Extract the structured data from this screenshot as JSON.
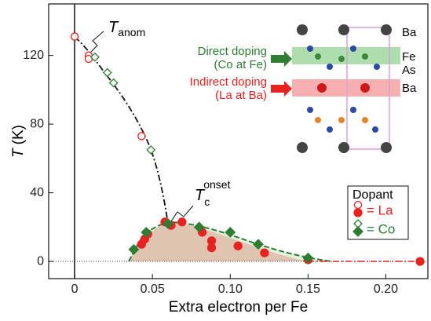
{
  "chart_data": {
    "type": "scatter",
    "x_label": "Extra electron per Fe",
    "y_label": {
      "symbol": "T",
      "unit": "(K)"
    },
    "xlim": [
      -0.0167,
      0.227
    ],
    "ylim": [
      -10,
      150
    ],
    "xticks": [
      0,
      0.05,
      {
        "value": 0.1,
        "label": "0.10"
      },
      0.15,
      {
        "value": 0.2,
        "label": "0.20"
      }
    ],
    "yticks": [
      0,
      40,
      80,
      120
    ],
    "annotations": {
      "anomaly": {
        "symbol": "T",
        "subscript": "anom"
      },
      "onset": {
        "symbol": "T",
        "subscript": "c",
        "superscript": "onset"
      }
    },
    "legend": {
      "title": "Dopant",
      "position": "lower right"
    },
    "dopants": [
      {
        "name": "= La",
        "color": "#e8231f",
        "marker": "circle",
        "anom_x": [
          0,
          0.009,
          0.009,
          0.043
        ],
        "anom": [
          131,
          120,
          118,
          73
        ],
        "tc_x": [
          0.043,
          0.045,
          0.047,
          0.058,
          0.062,
          0.069,
          0.082,
          0.088,
          0.088,
          0.105,
          0.122,
          0.15,
          0.222
        ],
        "tc": [
          10,
          13,
          16,
          23,
          21,
          23,
          17,
          12,
          8,
          9,
          5,
          1,
          0
        ]
      },
      {
        "name": "= Co",
        "color": "#2e7d32",
        "marker": "diamond",
        "anom_x": [
          0.013,
          0.021,
          0.025,
          0.049
        ],
        "anom": [
          119,
          110,
          104,
          65
        ],
        "tc_x": [
          0.038,
          0.046,
          0.06,
          0.08,
          0.1,
          0.118,
          0.15
        ],
        "tc": [
          7,
          17,
          22,
          20,
          17,
          10,
          2
        ]
      }
    ],
    "inset": {
      "direct": [
        "Direct doping",
        "(Co at Fe)"
      ],
      "indirect": [
        "Indirect doping",
        "(La at Ba)"
      ],
      "atoms": [
        "Ba",
        "Fe",
        "As",
        "Ba"
      ]
    }
  }
}
